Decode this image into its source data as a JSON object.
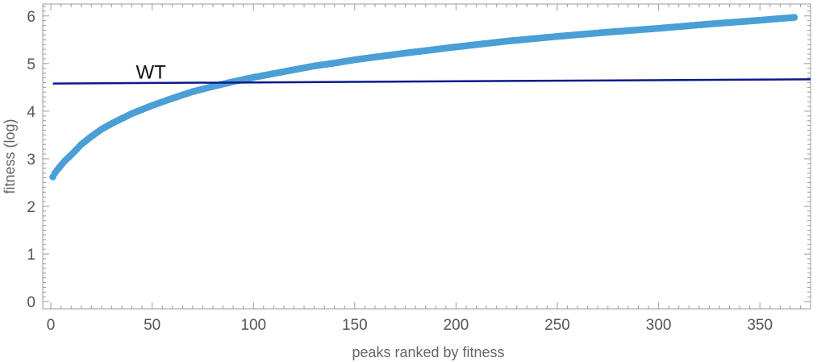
{
  "chart_data": {
    "type": "scatter",
    "title": "",
    "xlabel": "peaks ranked by fitness",
    "ylabel": "fitness (log)",
    "xlim": [
      -4,
      375
    ],
    "ylim": [
      -0.15,
      6.25
    ],
    "x_ticks_major": [
      0,
      50,
      100,
      150,
      200,
      250,
      300,
      350
    ],
    "x_tick_labels": [
      "0",
      "50",
      "100",
      "150",
      "200",
      "250",
      "300",
      "350"
    ],
    "y_ticks_major": [
      0,
      1,
      2,
      3,
      4,
      5,
      6
    ],
    "y_tick_labels": [
      "0",
      "1",
      "2",
      "3",
      "4",
      "5",
      "6"
    ],
    "grid": false,
    "frame": "box",
    "series": [
      {
        "color": "#4a9fd6",
        "marker": "circle",
        "x_start": 1,
        "x_end": 367,
        "x": [
          1,
          2,
          3,
          5,
          7,
          10,
          15,
          20,
          25,
          30,
          40,
          50,
          60,
          70,
          80,
          90,
          100,
          110,
          120,
          130,
          140,
          150,
          175,
          200,
          225,
          250,
          275,
          300,
          325,
          350,
          367
        ],
        "y": [
          2.62,
          2.7,
          2.76,
          2.86,
          2.96,
          3.08,
          3.3,
          3.47,
          3.62,
          3.74,
          3.95,
          4.12,
          4.27,
          4.41,
          4.52,
          4.62,
          4.71,
          4.79,
          4.87,
          4.95,
          5.01,
          5.08,
          5.22,
          5.35,
          5.47,
          5.57,
          5.66,
          5.74,
          5.83,
          5.91,
          5.97
        ]
      }
    ],
    "reference_line": {
      "label": "WT",
      "color": "#0a1a8c",
      "x": [
        1,
        375
      ],
      "y": [
        4.58,
        4.67
      ]
    }
  }
}
